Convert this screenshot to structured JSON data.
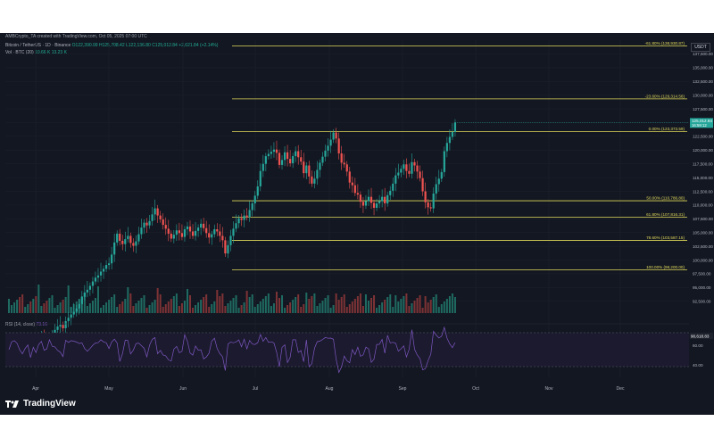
{
  "header": {
    "caption": "AMBCrypto_TA created with TradingView.com, Oct 05, 2025 07:00 UTC"
  },
  "legend": {
    "symbol": "Bitcoin / TetherUS · 1D · Binance",
    "ohlc": "O122,390.99 H125,708.42 L122,136.80 C125,012.84 +2,621.84 (+2.14%)",
    "vol_label": "Vol · BTC (20)",
    "vol_values": "10.66 K  13.23 K"
  },
  "rsi_legend": {
    "label": "RSI (14, close)",
    "value": "73.16"
  },
  "currency_button": "USDT",
  "branding": "TradingView",
  "colors": {
    "up": "#26a69a",
    "down": "#ef5350",
    "fib": "#e0d85a",
    "rsi": "#7e57c2",
    "bg": "#131722"
  },
  "chart_data": {
    "type": "candlestick",
    "title": "Bitcoin / TetherUS · 1D · Binance",
    "ylim": [
      91000,
      140000
    ],
    "yticks": [
      "92,500.00",
      "95,000.00",
      "97,500.00",
      "100,000.00",
      "102,500.00",
      "105,000.00",
      "107,500.00",
      "110,000.00",
      "112,500.00",
      "115,000.00",
      "117,500.00",
      "120,000.00",
      "122,500.00",
      "125,000.00",
      "127,500.00",
      "130,000.00",
      "132,500.00",
      "135,000.00",
      "137,500.00"
    ],
    "months": [
      "Apr",
      "May",
      "Jun",
      "Jul",
      "Aug",
      "Sep",
      "Oct",
      "Nov",
      "Dec"
    ],
    "fib_levels": [
      {
        "label": "-61.80% (138,930.87)",
        "value": 138930.87
      },
      {
        "label": "-23.60% (129,314.56)",
        "value": 129314.56
      },
      {
        "label": "0.00% (123,373.59)",
        "value": 123373.59
      },
      {
        "label": "50.00% (110,786.80)",
        "value": 110786.8
      },
      {
        "label": "61.80% (107,816.31)",
        "value": 107816.31
      },
      {
        "label": "78.60% (103,587.15)",
        "value": 103587.15
      },
      {
        "label": "100.00% (98,200.00)",
        "value": 98200.0
      }
    ],
    "price_badge": {
      "price": "125,012.84",
      "countdown": "16:59:12",
      "value": 125012.84
    },
    "volume_badge": {
      "label": "90,618.83"
    },
    "close": [
      82500,
      83200,
      83800,
      84000,
      83500,
      82800,
      83300,
      84600,
      84200,
      85100,
      84900,
      85400,
      86000,
      85200,
      84700,
      85800,
      86400,
      87300,
      87900,
      88200,
      87600,
      88900,
      89500,
      90100,
      90600,
      91200,
      92000,
      93300,
      94100,
      94600,
      95300,
      96100,
      96800,
      97200,
      97900,
      98400,
      99100,
      99400,
      101000,
      103200,
      104800,
      103500,
      102900,
      103800,
      104400,
      103100,
      102600,
      103400,
      104700,
      105900,
      106800,
      106300,
      107100,
      108300,
      109400,
      108100,
      107400,
      106400,
      105700,
      104800,
      103900,
      104600,
      105400,
      104900,
      104200,
      105600,
      106100,
      105200,
      104400,
      105300,
      105900,
      106600,
      105800,
      104900,
      104100,
      104700,
      105600,
      105200,
      104400,
      103600,
      101200,
      102700,
      104400,
      105700,
      106700,
      107600,
      107300,
      108100,
      107800,
      109100,
      110300,
      111700,
      113400,
      116200,
      117500,
      118900,
      119300,
      119700,
      120100,
      119500,
      117300,
      118200,
      119600,
      118400,
      117600,
      118900,
      119800,
      118700,
      117900,
      115800,
      117200,
      115200,
      113900,
      114800,
      116400,
      117700,
      118800,
      119900,
      120800,
      121900,
      123200,
      122100,
      119400,
      117700,
      117400,
      116100,
      114100,
      113600,
      112200,
      111900,
      110600,
      109900,
      110700,
      111500,
      110400,
      109500,
      110300,
      110700,
      111500,
      110300,
      111800,
      112600,
      113900,
      115400,
      115900,
      116600,
      117400,
      116200,
      115700,
      117800,
      117200,
      116100,
      114900,
      112500,
      110500,
      109600,
      109400,
      112100,
      113800,
      114800,
      116000,
      119800,
      121300,
      122400,
      123300,
      125012
    ],
    "rsi_levels": [
      70,
      30
    ],
    "rsi_tick_labels": [
      "60.00",
      "40.00"
    ]
  }
}
